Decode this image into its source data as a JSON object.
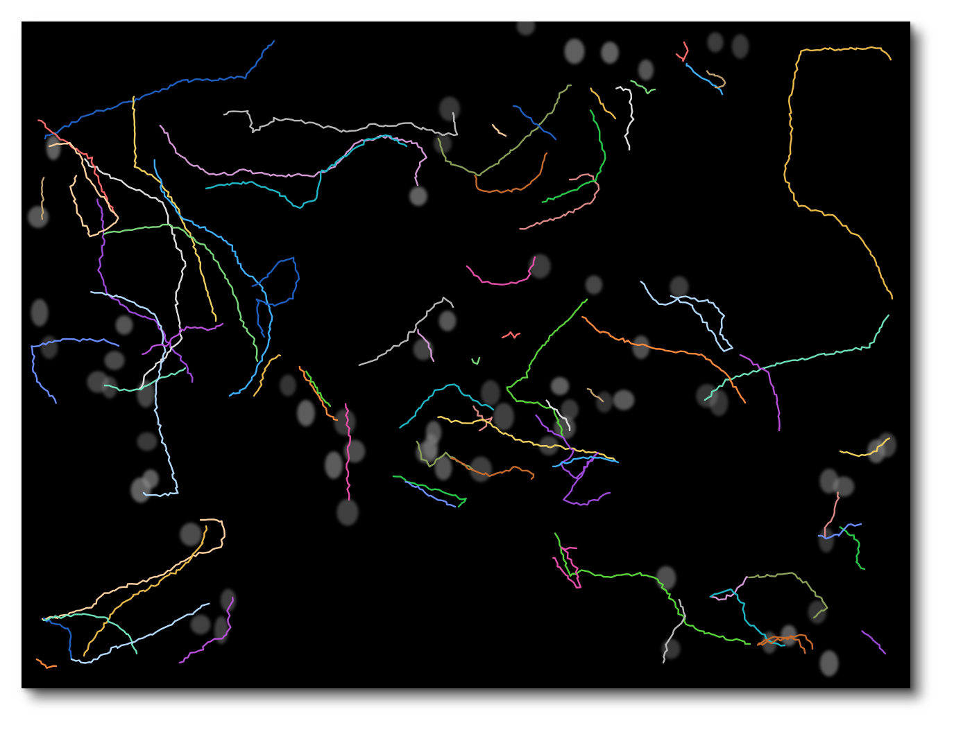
{
  "image": {
    "background_color": "#000000",
    "nucleus_color": "#8c8c8c",
    "track_colors": [
      "#1f5fbf",
      "#e8b84a",
      "#6fe0b8",
      "#b3d9ff",
      "#b44fd6",
      "#ff8a3d",
      "#5ad23c",
      "#e34fa8",
      "#b8b8b8",
      "#d39ad6",
      "#20b6c6",
      "#8aa05a",
      "#c56a2c",
      "#d98787",
      "#2ac84a",
      "#6a8cff",
      "#f0d060",
      "#9e4ad8",
      "#e0e0e0",
      "#3fb0ff",
      "#c0a070",
      "#ff6b6b",
      "#7ad67a",
      "#ffd0a0"
    ]
  }
}
